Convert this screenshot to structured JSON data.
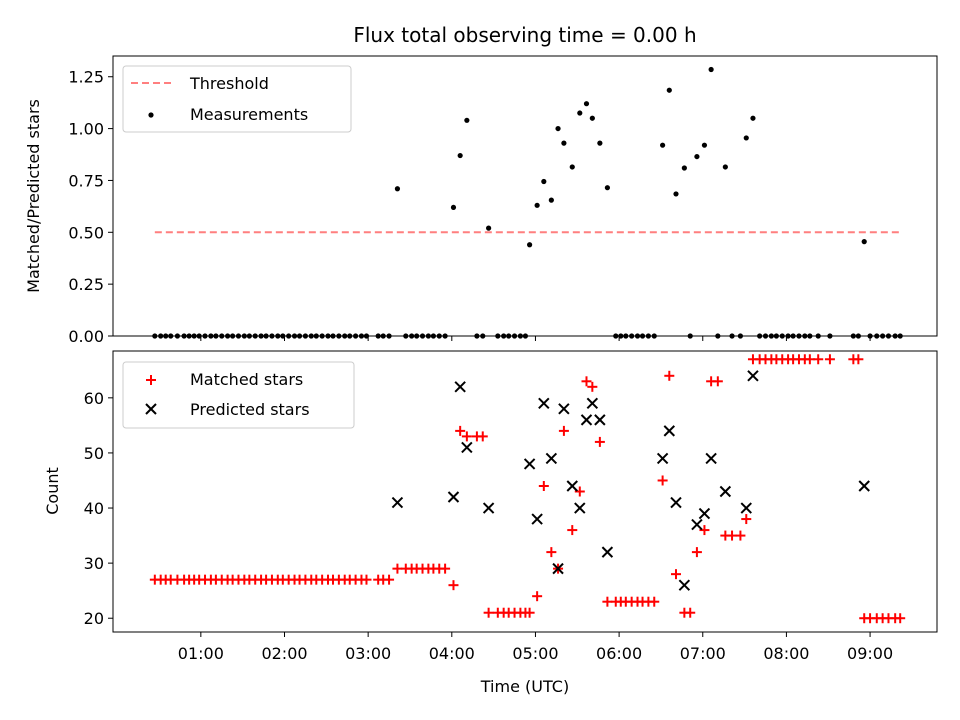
{
  "chart_data": [
    {
      "type": "scatter",
      "title": "Flux total observing time = 0.00 h",
      "xlabel": "",
      "ylabel": "Matched/Predicted stars",
      "ylim": [
        0,
        1.35
      ],
      "yticks": [
        "0.00",
        "0.25",
        "0.50",
        "0.75",
        "1.00",
        "1.25"
      ],
      "ytick_values": [
        0,
        0.25,
        0.5,
        0.75,
        1.0,
        1.25
      ],
      "xlim_hours": [
        -0.05,
        9.8
      ],
      "x_unit": "hours UTC",
      "legend": "top-left",
      "threshold": {
        "name": "Threshold",
        "value": 0.5,
        "x_range": [
          0.45,
          9.35
        ],
        "color": "#ff7f7f"
      },
      "series": [
        {
          "name": "Measurements",
          "color": "#000000",
          "points": [
            [
              0.45,
              0
            ],
            [
              0.52,
              0
            ],
            [
              0.58,
              0
            ],
            [
              0.64,
              0
            ],
            [
              0.72,
              0
            ],
            [
              0.8,
              0
            ],
            [
              0.86,
              0
            ],
            [
              0.92,
              0
            ],
            [
              0.98,
              0
            ],
            [
              1.05,
              0
            ],
            [
              1.12,
              0
            ],
            [
              1.18,
              0
            ],
            [
              1.25,
              0
            ],
            [
              1.32,
              0
            ],
            [
              1.38,
              0
            ],
            [
              1.45,
              0
            ],
            [
              1.52,
              0
            ],
            [
              1.58,
              0
            ],
            [
              1.65,
              0
            ],
            [
              1.72,
              0
            ],
            [
              1.78,
              0
            ],
            [
              1.85,
              0
            ],
            [
              1.92,
              0
            ],
            [
              1.98,
              0
            ],
            [
              2.05,
              0
            ],
            [
              2.12,
              0
            ],
            [
              2.18,
              0
            ],
            [
              2.25,
              0
            ],
            [
              2.32,
              0
            ],
            [
              2.38,
              0
            ],
            [
              2.45,
              0
            ],
            [
              2.52,
              0
            ],
            [
              2.58,
              0
            ],
            [
              2.65,
              0
            ],
            [
              2.72,
              0
            ],
            [
              2.78,
              0
            ],
            [
              2.85,
              0
            ],
            [
              2.92,
              0
            ],
            [
              2.98,
              0
            ],
            [
              3.12,
              0
            ],
            [
              3.18,
              0
            ],
            [
              3.25,
              0
            ],
            [
              3.35,
              0.71
            ],
            [
              3.45,
              0
            ],
            [
              3.52,
              0
            ],
            [
              3.58,
              0
            ],
            [
              3.65,
              0
            ],
            [
              3.72,
              0
            ],
            [
              3.78,
              0
            ],
            [
              3.85,
              0
            ],
            [
              3.92,
              0
            ],
            [
              4.02,
              0.62
            ],
            [
              4.1,
              0.87
            ],
            [
              4.18,
              1.04
            ],
            [
              4.3,
              0
            ],
            [
              4.37,
              0
            ],
            [
              4.44,
              0.52
            ],
            [
              4.55,
              0
            ],
            [
              4.62,
              0
            ],
            [
              4.68,
              0
            ],
            [
              4.75,
              0
            ],
            [
              4.82,
              0
            ],
            [
              4.88,
              0
            ],
            [
              4.93,
              0.44
            ],
            [
              5.02,
              0.63
            ],
            [
              5.1,
              0.745
            ],
            [
              5.19,
              0.655
            ],
            [
              5.27,
              1.0
            ],
            [
              5.34,
              0.93
            ],
            [
              5.44,
              0.815
            ],
            [
              5.53,
              1.075
            ],
            [
              5.61,
              1.12
            ],
            [
              5.68,
              1.05
            ],
            [
              5.77,
              0.93
            ],
            [
              5.86,
              0.715
            ],
            [
              5.96,
              0
            ],
            [
              6.02,
              0
            ],
            [
              6.08,
              0
            ],
            [
              6.15,
              0
            ],
            [
              6.22,
              0
            ],
            [
              6.28,
              0
            ],
            [
              6.35,
              0
            ],
            [
              6.42,
              0
            ],
            [
              6.52,
              0.92
            ],
            [
              6.6,
              1.185
            ],
            [
              6.68,
              0.685
            ],
            [
              6.78,
              0.81
            ],
            [
              6.85,
              0
            ],
            [
              6.93,
              0.865
            ],
            [
              7.02,
              0.92
            ],
            [
              7.1,
              1.285
            ],
            [
              7.18,
              0
            ],
            [
              7.27,
              0.815
            ],
            [
              7.35,
              0
            ],
            [
              7.45,
              0
            ],
            [
              7.52,
              0.955
            ],
            [
              7.6,
              1.05
            ],
            [
              7.68,
              0
            ],
            [
              7.75,
              0
            ],
            [
              7.82,
              0
            ],
            [
              7.88,
              0
            ],
            [
              7.95,
              0
            ],
            [
              8.02,
              0
            ],
            [
              8.08,
              0
            ],
            [
              8.15,
              0
            ],
            [
              8.22,
              0
            ],
            [
              8.28,
              0
            ],
            [
              8.38,
              0
            ],
            [
              8.52,
              0
            ],
            [
              8.8,
              0
            ],
            [
              8.86,
              0
            ],
            [
              8.93,
              0.455
            ],
            [
              9.0,
              0
            ],
            [
              9.08,
              0
            ],
            [
              9.15,
              0
            ],
            [
              9.22,
              0
            ],
            [
              9.3,
              0
            ],
            [
              9.36,
              0
            ]
          ]
        }
      ]
    },
    {
      "type": "scatter",
      "title": "",
      "xlabel": "Time (UTC)",
      "ylabel": "Count",
      "ylim": [
        17.5,
        68.5
      ],
      "yticks": [
        "20",
        "30",
        "40",
        "50",
        "60"
      ],
      "ytick_values": [
        20,
        30,
        40,
        50,
        60
      ],
      "xlim_hours": [
        -0.05,
        9.8
      ],
      "xticks": [
        "01:00",
        "02:00",
        "03:00",
        "04:00",
        "05:00",
        "06:00",
        "07:00",
        "08:00",
        "09:00"
      ],
      "xtick_values": [
        1,
        2,
        3,
        4,
        5,
        6,
        7,
        8,
        9
      ],
      "x_unit": "hours UTC",
      "legend": "top-left",
      "series": [
        {
          "name": "Matched stars",
          "color": "#ff0000",
          "marker": "plus",
          "points": [
            [
              0.45,
              27
            ],
            [
              0.52,
              27
            ],
            [
              0.58,
              27
            ],
            [
              0.64,
              27
            ],
            [
              0.72,
              27
            ],
            [
              0.8,
              27
            ],
            [
              0.86,
              27
            ],
            [
              0.92,
              27
            ],
            [
              0.98,
              27
            ],
            [
              1.05,
              27
            ],
            [
              1.12,
              27
            ],
            [
              1.18,
              27
            ],
            [
              1.25,
              27
            ],
            [
              1.32,
              27
            ],
            [
              1.38,
              27
            ],
            [
              1.45,
              27
            ],
            [
              1.52,
              27
            ],
            [
              1.58,
              27
            ],
            [
              1.65,
              27
            ],
            [
              1.72,
              27
            ],
            [
              1.78,
              27
            ],
            [
              1.85,
              27
            ],
            [
              1.92,
              27
            ],
            [
              1.98,
              27
            ],
            [
              2.05,
              27
            ],
            [
              2.12,
              27
            ],
            [
              2.18,
              27
            ],
            [
              2.25,
              27
            ],
            [
              2.32,
              27
            ],
            [
              2.38,
              27
            ],
            [
              2.45,
              27
            ],
            [
              2.52,
              27
            ],
            [
              2.58,
              27
            ],
            [
              2.65,
              27
            ],
            [
              2.72,
              27
            ],
            [
              2.78,
              27
            ],
            [
              2.85,
              27
            ],
            [
              2.92,
              27
            ],
            [
              2.98,
              27
            ],
            [
              3.12,
              27
            ],
            [
              3.18,
              27
            ],
            [
              3.25,
              27
            ],
            [
              3.35,
              29
            ],
            [
              3.45,
              29
            ],
            [
              3.52,
              29
            ],
            [
              3.58,
              29
            ],
            [
              3.65,
              29
            ],
            [
              3.72,
              29
            ],
            [
              3.78,
              29
            ],
            [
              3.85,
              29
            ],
            [
              3.92,
              29
            ],
            [
              4.02,
              26
            ],
            [
              4.1,
              54
            ],
            [
              4.18,
              53
            ],
            [
              4.3,
              53
            ],
            [
              4.37,
              53
            ],
            [
              4.44,
              21
            ],
            [
              4.55,
              21
            ],
            [
              4.62,
              21
            ],
            [
              4.68,
              21
            ],
            [
              4.75,
              21
            ],
            [
              4.82,
              21
            ],
            [
              4.88,
              21
            ],
            [
              4.93,
              21
            ],
            [
              5.02,
              24
            ],
            [
              5.1,
              44
            ],
            [
              5.19,
              32
            ],
            [
              5.27,
              29
            ],
            [
              5.34,
              54
            ],
            [
              5.44,
              36
            ],
            [
              5.53,
              43
            ],
            [
              5.61,
              63
            ],
            [
              5.68,
              62
            ],
            [
              5.77,
              52
            ],
            [
              5.86,
              23
            ],
            [
              5.96,
              23
            ],
            [
              6.02,
              23
            ],
            [
              6.08,
              23
            ],
            [
              6.15,
              23
            ],
            [
              6.22,
              23
            ],
            [
              6.28,
              23
            ],
            [
              6.35,
              23
            ],
            [
              6.42,
              23
            ],
            [
              6.52,
              45
            ],
            [
              6.6,
              64
            ],
            [
              6.68,
              28
            ],
            [
              6.78,
              21
            ],
            [
              6.85,
              21
            ],
            [
              6.93,
              32
            ],
            [
              7.02,
              36
            ],
            [
              7.1,
              63
            ],
            [
              7.18,
              63
            ],
            [
              7.27,
              35
            ],
            [
              7.35,
              35
            ],
            [
              7.45,
              35
            ],
            [
              7.52,
              38
            ],
            [
              7.6,
              67
            ],
            [
              7.68,
              67
            ],
            [
              7.75,
              67
            ],
            [
              7.82,
              67
            ],
            [
              7.88,
              67
            ],
            [
              7.95,
              67
            ],
            [
              8.02,
              67
            ],
            [
              8.08,
              67
            ],
            [
              8.15,
              67
            ],
            [
              8.22,
              67
            ],
            [
              8.28,
              67
            ],
            [
              8.38,
              67
            ],
            [
              8.52,
              67
            ],
            [
              8.8,
              67
            ],
            [
              8.86,
              67
            ],
            [
              8.93,
              20
            ],
            [
              9.0,
              20
            ],
            [
              9.08,
              20
            ],
            [
              9.15,
              20
            ],
            [
              9.22,
              20
            ],
            [
              9.3,
              20
            ],
            [
              9.36,
              20
            ]
          ]
        },
        {
          "name": "Predicted stars",
          "color": "#000000",
          "marker": "x",
          "points": [
            [
              3.35,
              41
            ],
            [
              4.02,
              42
            ],
            [
              4.1,
              62
            ],
            [
              4.18,
              51
            ],
            [
              4.44,
              40
            ],
            [
              4.93,
              48
            ],
            [
              5.02,
              38
            ],
            [
              5.1,
              59
            ],
            [
              5.19,
              49
            ],
            [
              5.27,
              29
            ],
            [
              5.34,
              58
            ],
            [
              5.44,
              44
            ],
            [
              5.53,
              40
            ],
            [
              5.61,
              56
            ],
            [
              5.68,
              59
            ],
            [
              5.77,
              56
            ],
            [
              5.86,
              32
            ],
            [
              6.52,
              49
            ],
            [
              6.6,
              54
            ],
            [
              6.68,
              41
            ],
            [
              6.78,
              26
            ],
            [
              6.93,
              37
            ],
            [
              7.02,
              39
            ],
            [
              7.1,
              49
            ],
            [
              7.27,
              43
            ],
            [
              7.52,
              40
            ],
            [
              7.6,
              64
            ],
            [
              8.93,
              44
            ]
          ]
        }
      ]
    }
  ]
}
